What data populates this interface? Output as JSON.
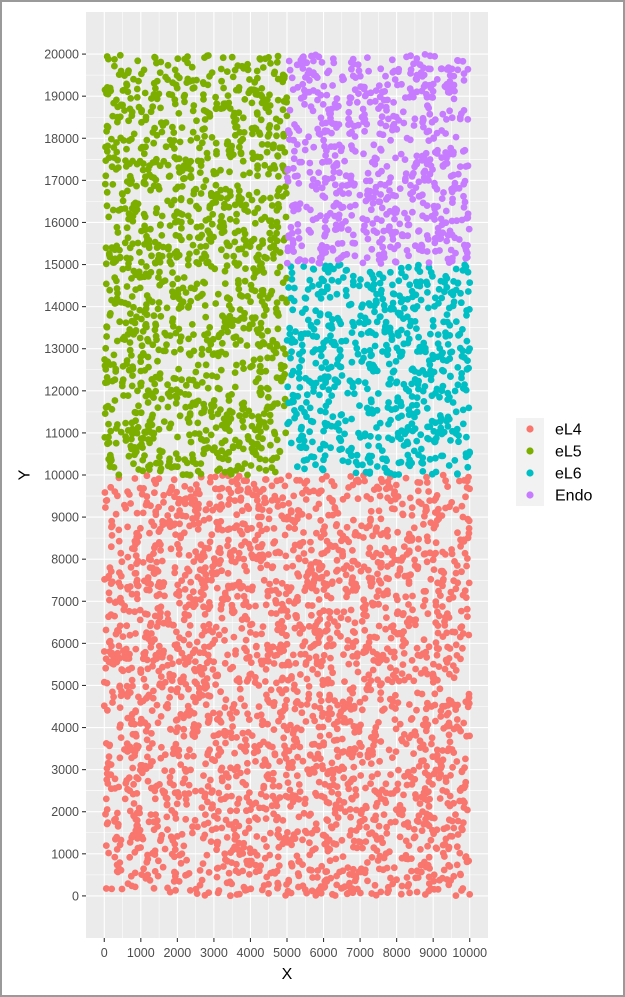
{
  "chart_data": {
    "type": "scatter",
    "xlabel": "X",
    "ylabel": "Y",
    "xlim": [
      -500,
      10500
    ],
    "ylim": [
      -1000,
      21000
    ],
    "x_ticks": [
      0,
      1000,
      2000,
      3000,
      4000,
      5000,
      6000,
      7000,
      8000,
      9000,
      10000
    ],
    "y_ticks": [
      0,
      1000,
      2000,
      3000,
      4000,
      5000,
      6000,
      7000,
      8000,
      9000,
      10000,
      11000,
      12000,
      13000,
      14000,
      15000,
      16000,
      17000,
      18000,
      19000,
      20000
    ],
    "grid": true,
    "legend_position": "right",
    "series": [
      {
        "name": "eL4",
        "color": "#F8766D",
        "region": {
          "x": [
            0,
            10000
          ],
          "y": [
            0,
            10000
          ]
        },
        "approx_points": 2600
      },
      {
        "name": "eL5",
        "color": "#7CAE00",
        "region": {
          "x": [
            0,
            5000
          ],
          "y": [
            10000,
            20000
          ]
        },
        "approx_points": 1300
      },
      {
        "name": "eL6",
        "color": "#00BFC4",
        "region": {
          "x": [
            5000,
            10000
          ],
          "y": [
            10000,
            15000
          ]
        },
        "approx_points": 650
      },
      {
        "name": "Endo",
        "color": "#C77CFF",
        "region": {
          "x": [
            5000,
            10000
          ],
          "y": [
            15000,
            20000
          ]
        },
        "approx_points": 650
      }
    ]
  }
}
